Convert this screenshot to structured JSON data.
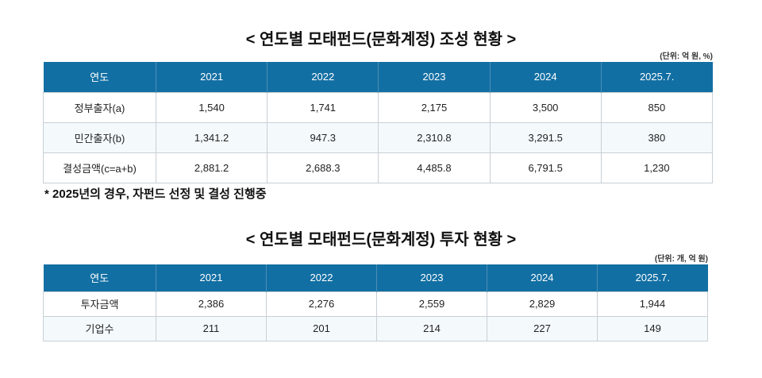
{
  "table1": {
    "title": "< 연도별 모태펀드(문화계정) 조성 현황 >",
    "unit": "(단위: 억 원, %)",
    "headers": [
      "연도",
      "2021",
      "2022",
      "2023",
      "2024",
      "2025.7."
    ],
    "rows": [
      [
        "정부출자(a)",
        "1,540",
        "1,741",
        "2,175",
        "3,500",
        "850"
      ],
      [
        "민간출자(b)",
        "1,341.2",
        "947.3",
        "2,310.8",
        "3,291.5",
        "380"
      ],
      [
        "결성금액(c=a+b)",
        "2,881.2",
        "2,688.3",
        "4,485.8",
        "6,791.5",
        "1,230"
      ]
    ],
    "note": "* 2025년의 경우, 자펀드 선정 및 결성 진행중"
  },
  "table2": {
    "title": "< 연도별 모태펀드(문화계정) 투자 현황 >",
    "unit": "(단위: 개, 억 원)",
    "headers": [
      "연도",
      "2021",
      "2022",
      "2023",
      "2024",
      "2025.7."
    ],
    "rows": [
      [
        "투자금액",
        "2,386",
        "2,276",
        "2,559",
        "2,829",
        "1,944"
      ],
      [
        "기업수",
        "211",
        "201",
        "214",
        "227",
        "149"
      ]
    ]
  },
  "colors": {
    "header_bg": "#126fa3",
    "alt_row_bg": "#f4fafc"
  }
}
